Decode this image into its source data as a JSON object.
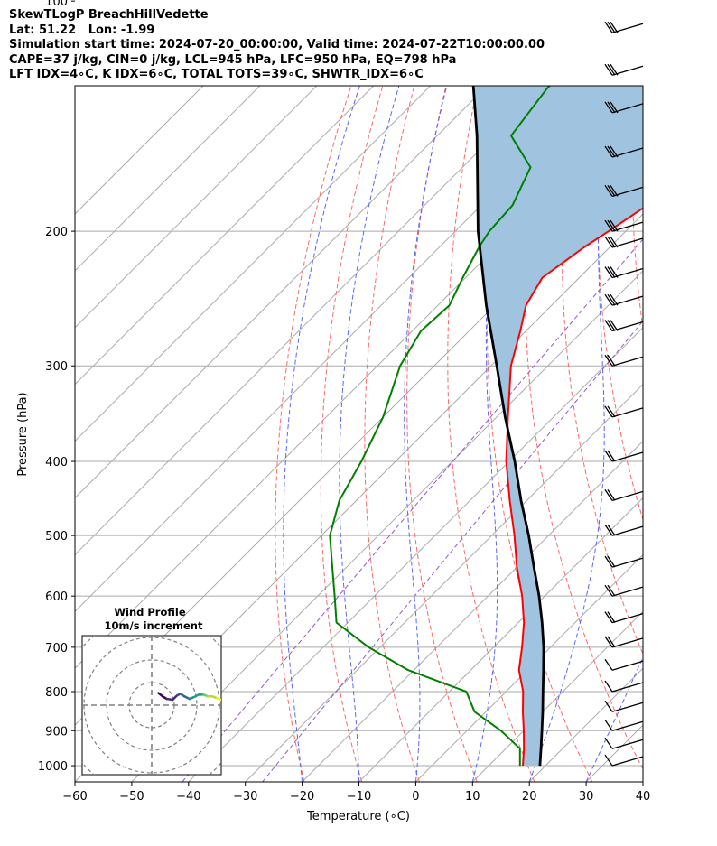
{
  "header": {
    "lines": [
      "SkewTLogP BreachHillVedette",
      "Lat: 51.22   Lon: -1.99",
      "Simulation start time: 2024-07-20_00:00:00, Valid time: 2024-07-22T10:00:00.00",
      "CAPE=37 j/kg, CIN=0 j/kg, LCL=945 hPa, LFC=950 hPa, EQ=798 hPa",
      "LFT IDX=4∘C, K IDX=6∘C, TOTAL TOTS=39∘C, SHWTR_IDX=6∘C"
    ]
  },
  "chart_data": {
    "type": "line",
    "chart_kind": "skew-T log-P diagram",
    "xlabel": "Temperature (∘C)",
    "ylabel": "Pressure (hPa)",
    "xlim": [
      -60,
      40
    ],
    "ylim": [
      1050,
      100
    ],
    "y_scale": "log",
    "skew": "isotherms slope up-right at 45 degrees",
    "x_ticks": [
      "−60",
      "−50",
      "−40",
      "−30",
      "−20",
      "−10",
      "0",
      "10",
      "20",
      "30",
      "40"
    ],
    "x_tick_values": [
      -60,
      -50,
      -40,
      -30,
      -20,
      -10,
      0,
      10,
      20,
      30,
      40
    ],
    "y_ticks": [
      "100",
      "200",
      "300",
      "400",
      "500",
      "600",
      "700",
      "800",
      "900",
      "1000"
    ],
    "y_tick_values": [
      100,
      200,
      300,
      400,
      500,
      600,
      700,
      800,
      900,
      1000
    ],
    "grid": true,
    "temperature_color": "#ff0000",
    "dewpoint_color": "#008000",
    "parcel_color": "#000000",
    "cape_fill_color": "#a0c4e0",
    "dry_adiabat_color": "#ff6666",
    "moist_adiabat_color": "#5566ff",
    "mixing_ratio_color": "#9955cc",
    "isotherm_color": "#aaaaaa",
    "series": [
      {
        "key": "temperature",
        "p": [
          1000,
          950,
          900,
          850,
          800,
          750,
          700,
          650,
          600,
          550,
          500,
          450,
          400,
          350,
          300,
          270,
          250,
          230,
          210,
          200,
          180,
          165,
          150,
          130,
          115,
          108,
          100
        ],
        "t": [
          16.0,
          13.2,
          10.0,
          6.5,
          3.0,
          -1.5,
          -5.0,
          -9.0,
          -14.0,
          -20.0,
          -26.0,
          -33.0,
          -40.5,
          -48.0,
          -56.5,
          -61.0,
          -64.5,
          -66.5,
          -64.5,
          -63.0,
          -60.0,
          -57.5,
          -57.0,
          -56.0,
          -55.0,
          -55.0,
          -55.0
        ]
      },
      {
        "key": "dewpoint",
        "p": [
          1000,
          950,
          900,
          850,
          800,
          750,
          700,
          650,
          600,
          550,
          500,
          450,
          400,
          350,
          300,
          270,
          250,
          230,
          210,
          200,
          185,
          165,
          150,
          130,
          115,
          100
        ],
        "t": [
          15.5,
          12.5,
          6.0,
          -2.0,
          -7.0,
          -21.0,
          -32.0,
          -42.0,
          -47.0,
          -52.5,
          -58.5,
          -63.0,
          -66.0,
          -70.0,
          -76.0,
          -78.5,
          -78.0,
          -80.5,
          -83.0,
          -84.0,
          -84.5,
          -88.0,
          -97.0,
          -99.0,
          -99.0,
          -100.0
        ]
      },
      {
        "key": "parcel",
        "p": [
          1000,
          950,
          900,
          850,
          800,
          750,
          700,
          650,
          600,
          550,
          500,
          450,
          400,
          350,
          300,
          250,
          200,
          150,
          120,
          100
        ],
        "t": [
          19.0,
          16.2,
          13.2,
          10.0,
          6.5,
          2.8,
          -1.2,
          -5.8,
          -11.0,
          -17.0,
          -23.5,
          -31.0,
          -39.0,
          -48.5,
          -59.0,
          -71.5,
          -86.0,
          -103.0,
          -117.0,
          -129.0
        ]
      }
    ],
    "wind_barbs_note": "wind barbs plotted along right edge at each pressure level",
    "inset": {
      "title_line1": "Wind Profile",
      "title_line2": "10m/s increment",
      "hodograph_u": [
        0.8,
        1.3,
        1.8,
        2.5,
        3.0,
        3.4,
        3.9,
        4.5,
        5.0,
        5.6,
        6.2,
        6.7,
        7.2,
        7.8,
        8.3
      ],
      "hodograph_v": [
        0.8,
        0.4,
        0.1,
        0.0,
        0.5,
        0.7,
        0.4,
        0.1,
        0.3,
        0.6,
        0.6,
        0.4,
        0.4,
        0.2,
        0.0
      ]
    }
  }
}
